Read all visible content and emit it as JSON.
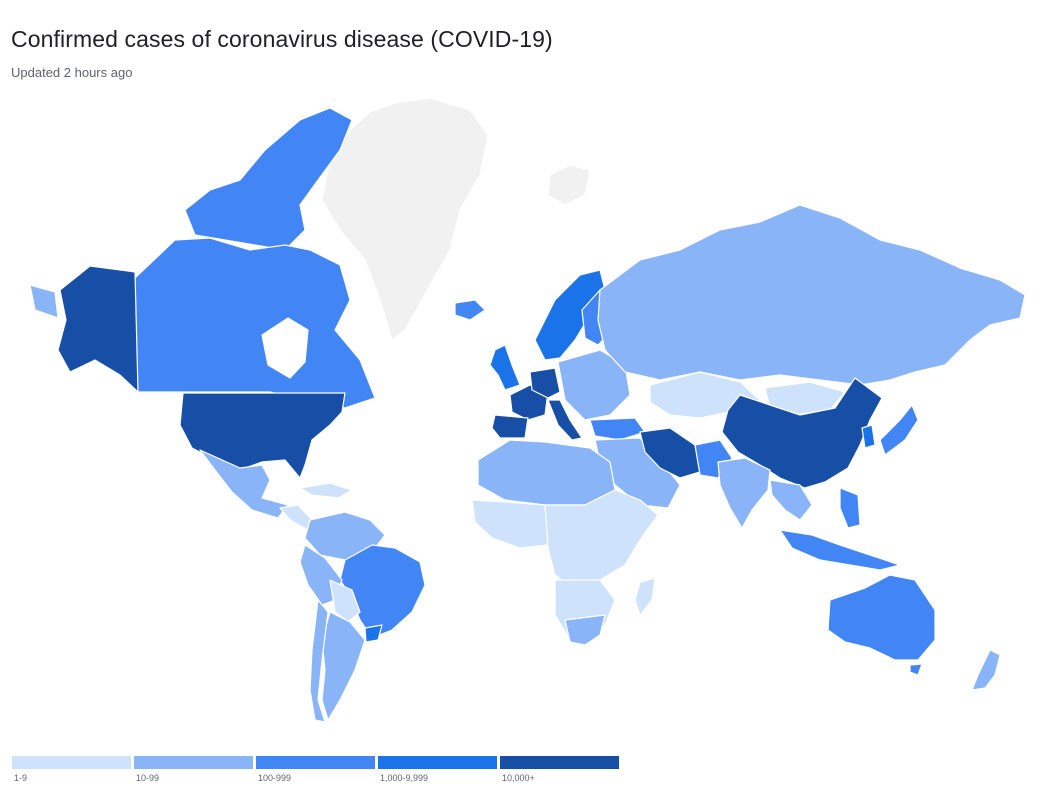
{
  "header": {
    "title": "Confirmed cases of coronavirus disease (COVID-19)",
    "subtitle": "Updated 2 hours ago"
  },
  "legend": [
    {
      "label": "1-9",
      "color": "#cfe2fb"
    },
    {
      "label": "10-99",
      "color": "#8ab4f8"
    },
    {
      "label": "100-999",
      "color": "#4285f4"
    },
    {
      "label": "1,000-9,999",
      "color": "#1a73e8"
    },
    {
      "label": "10,000+",
      "color": "#174ea6"
    }
  ],
  "map_colors": {
    "no_data": "#f1f1f1",
    "border": "#ffffff"
  }
}
